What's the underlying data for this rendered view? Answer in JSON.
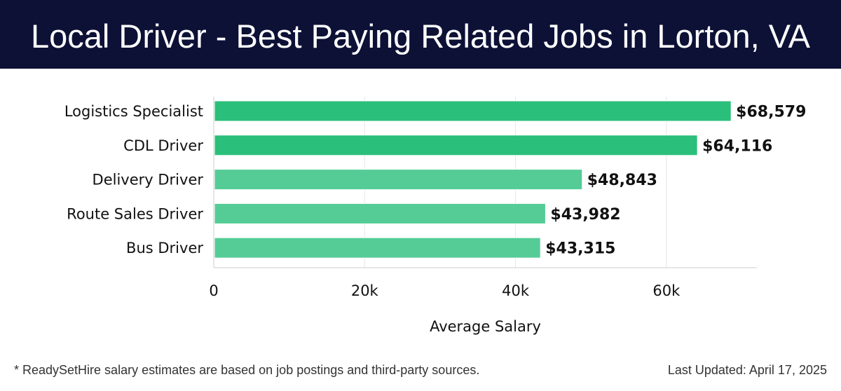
{
  "header": {
    "title": "Local Driver - Best Paying Related Jobs in Lorton, VA"
  },
  "footer": {
    "note": "* ReadySetHire salary estimates are based on job postings and third-party sources.",
    "updated": "Last Updated: April 17, 2025"
  },
  "colors": {
    "header_bg": "#0d1136",
    "bar_dark": "#2abf7a",
    "bar_light": "#55cc96"
  },
  "chart_data": {
    "type": "bar",
    "orientation": "horizontal",
    "categories": [
      "Logistics Specialist",
      "CDL Driver",
      "Delivery Driver",
      "Route Sales Driver",
      "Bus Driver"
    ],
    "values": [
      68579,
      64116,
      48843,
      43982,
      43315
    ],
    "value_labels": [
      "$68,579",
      "$64,116",
      "$48,843",
      "$43,982",
      "$43,315"
    ],
    "bar_shades": [
      "dark",
      "dark",
      "light",
      "light",
      "light"
    ],
    "xlabel": "Average Salary",
    "ylabel": "",
    "xlim": [
      0,
      72000
    ],
    "xticks": [
      0,
      20000,
      40000,
      60000
    ],
    "xtick_labels": [
      "0",
      "20k",
      "40k",
      "60k"
    ],
    "grid": true
  }
}
